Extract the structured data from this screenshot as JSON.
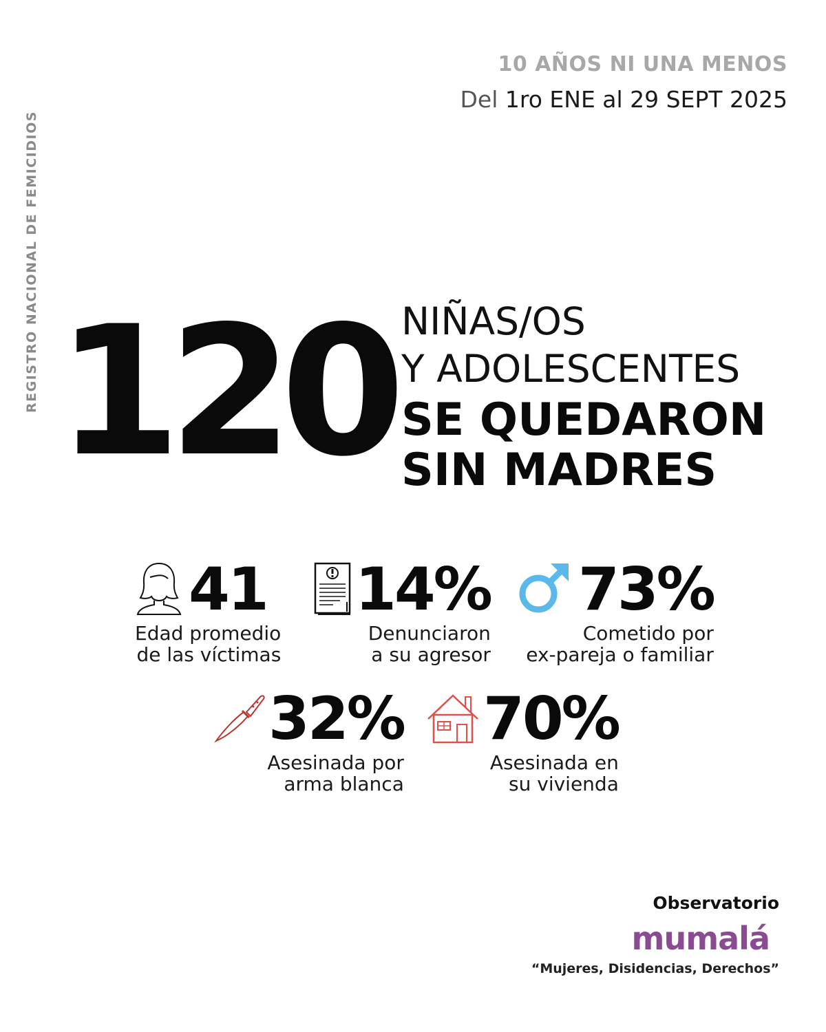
{
  "side_label": "REGISTRO NACIONAL DE FEMICIDIOS",
  "header": {
    "title": "10 AÑOS NI UNA MENOS",
    "date_prefix": "Del",
    "date_rest": "1ro ENE al 29 SEPT  2025"
  },
  "main": {
    "number": "120",
    "line1": "NIÑAS/OS",
    "line2": "Y ADOLESCENTES",
    "line3": "SE QUEDARON",
    "line4": "SIN MADRES"
  },
  "stats": [
    {
      "value": "41",
      "caption_1": "Edad promedio",
      "caption_2": "de las víctimas",
      "icon": "woman-icon"
    },
    {
      "value": "14%",
      "caption_1": "Denunciaron",
      "caption_2": "a su agresor",
      "icon": "document-alert-icon"
    },
    {
      "value": "73%",
      "caption_1": "Cometido por",
      "caption_2": "ex-pareja o familiar",
      "icon": "male-symbol-icon",
      "icon_color": "#5bb8ea"
    },
    {
      "value": "32%",
      "caption_1": "Asesinada por",
      "caption_2": "arma blanca",
      "icon": "knife-icon",
      "icon_color": "#b5372e"
    },
    {
      "value": "70%",
      "caption_1": "Asesinada en",
      "caption_2": "su vivienda",
      "icon": "house-icon",
      "icon_color": "#e0504a"
    }
  ],
  "footer": {
    "observatorio": "Observatorio",
    "logo": "mumalá",
    "tagline": "“Mujeres, Disidencias, Derechos”"
  },
  "colors": {
    "logo": "#8a4b92",
    "gray_text": "#a8a8a8"
  }
}
